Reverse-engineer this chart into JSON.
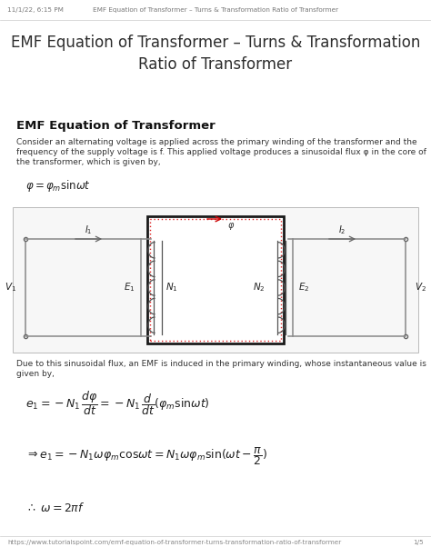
{
  "bg_color": "#ffffff",
  "header_date": "11/1/22, 6:15 PM",
  "header_title": "EMF Equation of Transformer – Turns & Transformation Ratio of Transformer",
  "page_title": "EMF Equation of Transformer – Turns & Transformation\nRatio of Transformer",
  "section_title": "EMF Equation of Transformer",
  "body_text1a": "Consider an alternating voltage is applied across the primary winding of the transformer and the",
  "body_text1b": "frequency of the supply voltage is f. This applied voltage produces a sinusoidal flux φ in the core of",
  "body_text1c": "the transformer, which is given by,",
  "body_text2a": "Due to this sinusoidal flux, an EMF is induced in the primary winding, whose instantaneous value is",
  "body_text2b": "given by,",
  "footer": "https://www.tutorialspoint.com/emf-equation-of-transformer-turns-transformation-ratio-of-transformer",
  "footer_right": "1/5",
  "text_color": "#333333",
  "header_color": "#555555",
  "title_color": "#2d2d2d"
}
